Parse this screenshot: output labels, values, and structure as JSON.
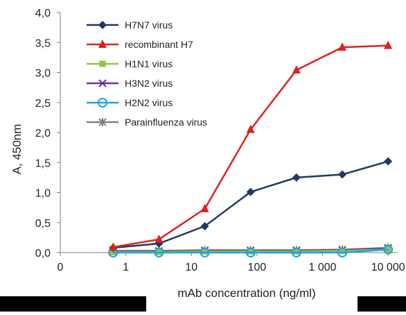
{
  "chart_data": {
    "type": "line",
    "title": "",
    "xlabel": "mAb concentration (ng/ml)",
    "ylabel": "A, 450nm",
    "x_scale": "log",
    "x_tick_labels": [
      "0",
      "1",
      "10",
      "100",
      "1 000",
      "10 000"
    ],
    "x_ticks": [
      0.1,
      1,
      10,
      100,
      1000,
      10000
    ],
    "xlim": [
      0.1,
      14000
    ],
    "y_tick_labels": [
      "0,0",
      "0,5",
      "1,0",
      "1,5",
      "2,0",
      "2,5",
      "3,0",
      "3,5",
      "4,0"
    ],
    "y_ticks": [
      0,
      0.5,
      1.0,
      1.5,
      2.0,
      2.5,
      3.0,
      3.5,
      4.0
    ],
    "ylim": [
      0,
      4.0
    ],
    "grid": false,
    "legend_position": "top-left",
    "x": [
      0.64,
      3.2,
      16,
      80,
      400,
      2000,
      10000
    ],
    "series": [
      {
        "name": "H7N7 virus",
        "color": "#1f3864",
        "marker": "diamond",
        "values": [
          0.08,
          0.15,
          0.44,
          1.01,
          1.25,
          1.3,
          1.52
        ]
      },
      {
        "name": "recombinant H7",
        "color": "#e02020",
        "marker": "triangle",
        "values": [
          0.09,
          0.22,
          0.73,
          2.05,
          3.04,
          3.42,
          3.45
        ]
      },
      {
        "name": "H1N1 virus",
        "color": "#8dc63f",
        "marker": "square",
        "values": [
          0.01,
          0.01,
          0.02,
          0.02,
          0.02,
          0.03,
          0.05
        ]
      },
      {
        "name": "H3N2 virus",
        "color": "#7030a0",
        "marker": "x",
        "values": [
          0.02,
          0.02,
          0.03,
          0.03,
          0.03,
          0.04,
          0.07
        ]
      },
      {
        "name": "H2N2 virus",
        "color": "#1fa2e0",
        "marker": "circle",
        "values": [
          0.0,
          0.0,
          0.0,
          0.0,
          0.0,
          0.0,
          0.05
        ]
      },
      {
        "name": "Parainfluenza virus",
        "color": "#808080",
        "marker": "star",
        "values": [
          0.03,
          0.03,
          0.04,
          0.04,
          0.04,
          0.05,
          0.08
        ]
      }
    ]
  }
}
